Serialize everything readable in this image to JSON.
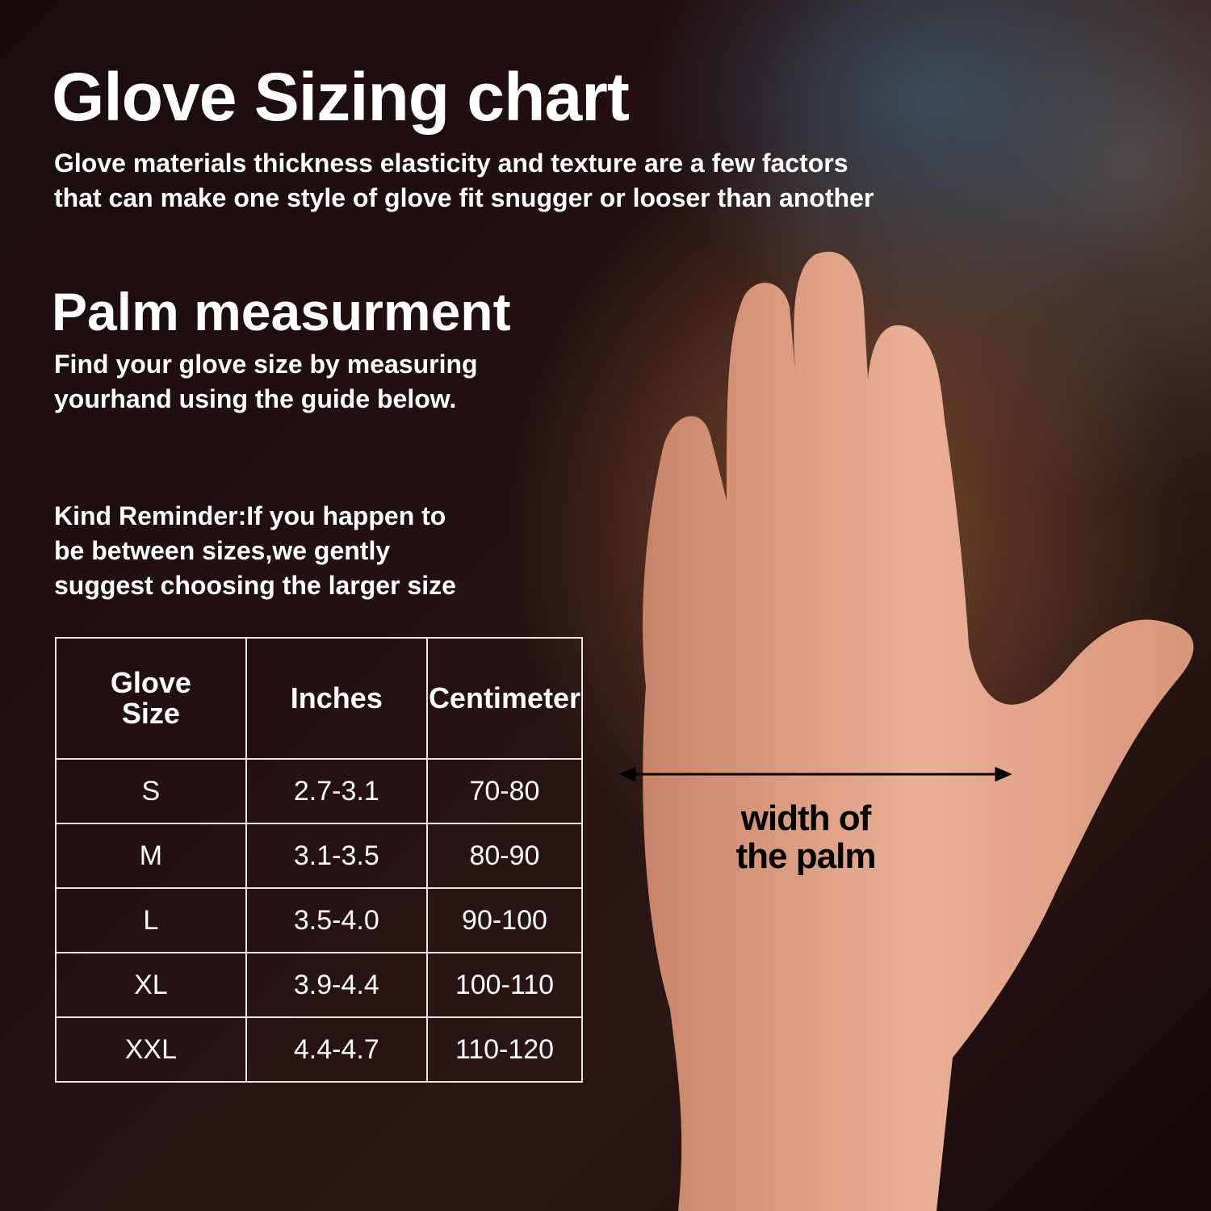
{
  "title": "Glove Sizing chart",
  "subtitle": [
    "Glove materials thickness elasticity and texture are a few factors",
    "that can make one style of glove fit snugger or looser than another"
  ],
  "palm": {
    "heading": "Palm measurment",
    "text": [
      "Find your glove size by measuring",
      "yourhand using the guide below."
    ]
  },
  "reminder": [
    "Kind Reminder:If you happen to",
    "be between sizes,we gently",
    "suggest choosing the larger size"
  ],
  "table": {
    "headers": [
      "Glove Size",
      "Inches",
      "Centimeter"
    ],
    "rows": [
      [
        "S",
        "2.7-3.1",
        "70-80"
      ],
      [
        "M",
        "3.1-3.5",
        "80-90"
      ],
      [
        "L",
        "3.5-4.0",
        "90-100"
      ],
      [
        "XL",
        "3.9-4.4",
        "100-110"
      ],
      [
        "XXL",
        "4.4-4.7",
        "110-120"
      ]
    ]
  },
  "hand_label": [
    "width of",
    "the palm"
  ],
  "colors": {
    "skin": "#e3a487",
    "background": "#1e0d0e"
  }
}
